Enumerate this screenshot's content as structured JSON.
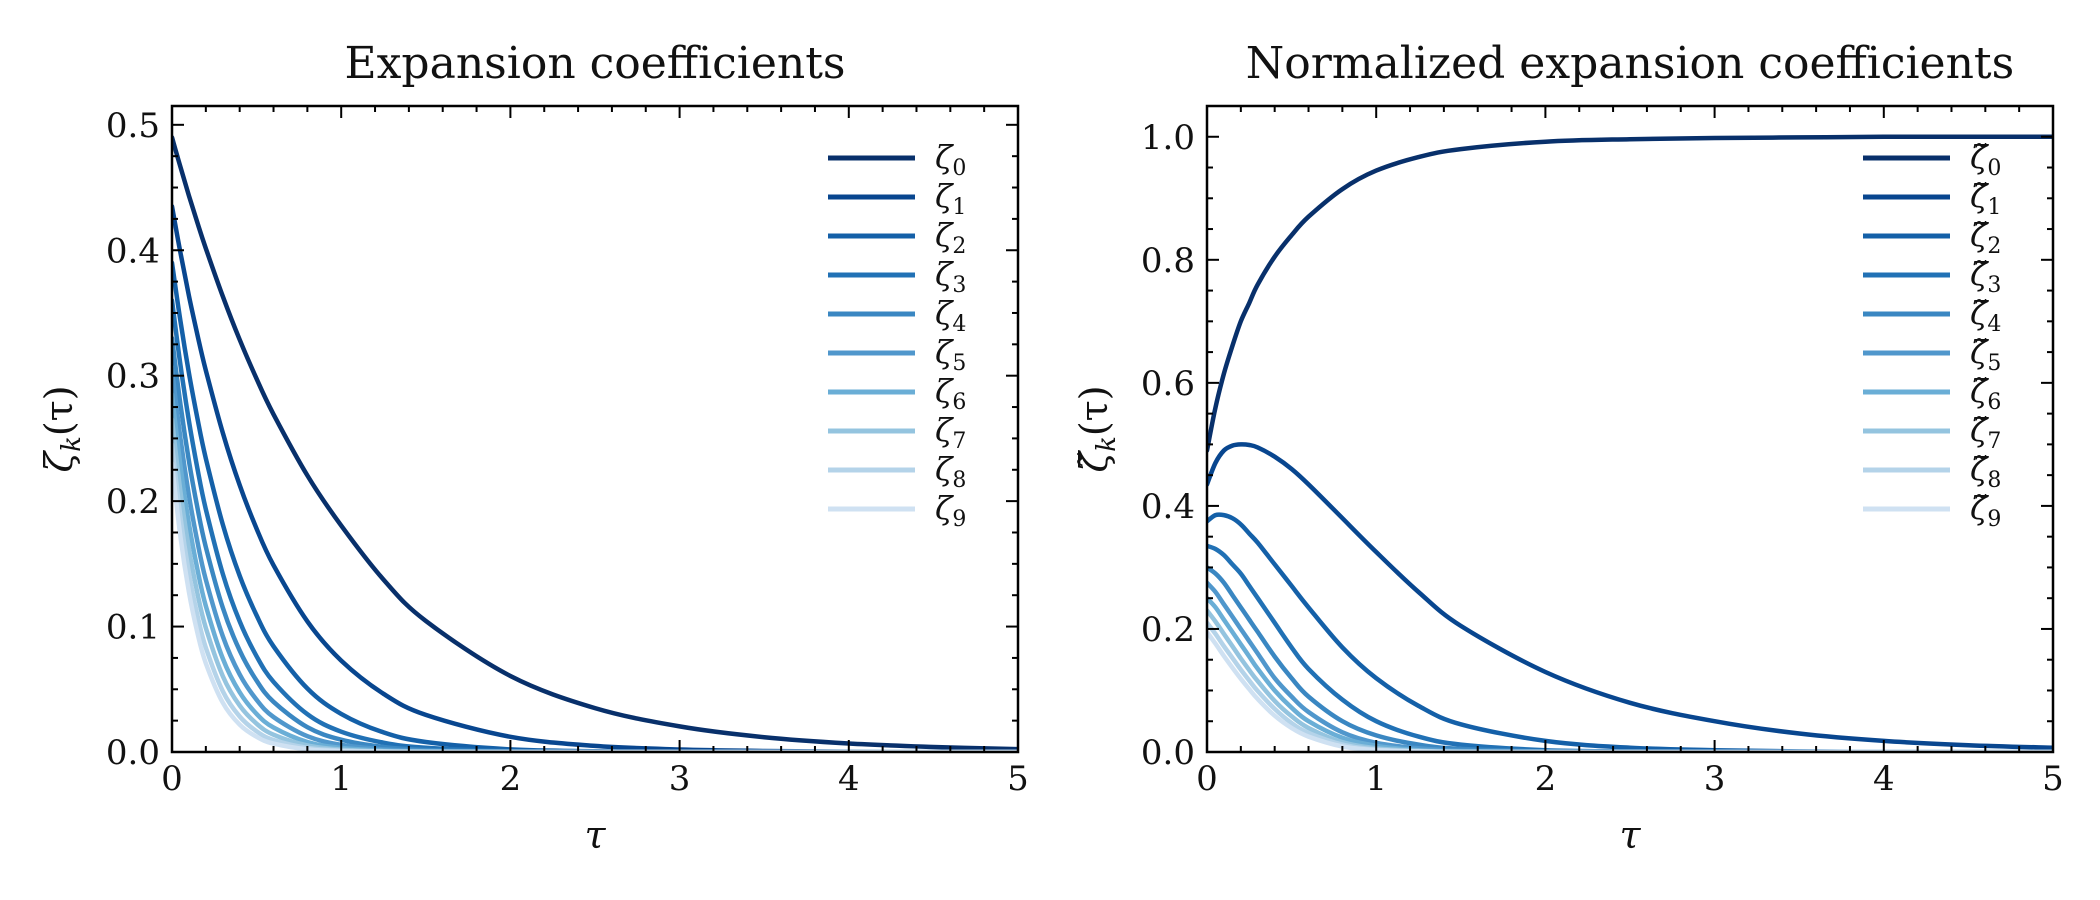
{
  "chart_data": [
    {
      "type": "line",
      "title": "Expansion coefficients",
      "xlabel": "τ",
      "ylabel": "ζ_k(τ)",
      "ylabel_base": "ζ",
      "ylabel_sub": "k",
      "ylabel_tail": "(τ)",
      "xlim": [
        0,
        5
      ],
      "ylim": [
        0,
        0.515
      ],
      "xticks": [
        0,
        1,
        2,
        3,
        4,
        5
      ],
      "xtick_labels": [
        "0",
        "1",
        "2",
        "3",
        "4",
        "5"
      ],
      "yticks": [
        0.0,
        0.1,
        0.2,
        0.3,
        0.4,
        0.5
      ],
      "ytick_labels": [
        "0.0",
        "0.1",
        "0.2",
        "0.3",
        "0.4",
        "0.5"
      ],
      "legend_position": "upper-right",
      "grid": false,
      "x": [
        0,
        0.05,
        0.1,
        0.15,
        0.2,
        0.3,
        0.4,
        0.5,
        0.6,
        0.8,
        1.0,
        1.25,
        1.5,
        2.0,
        2.5,
        3.0,
        3.5,
        4.0,
        4.5,
        5.0
      ],
      "series": [
        {
          "name": "ζ_0",
          "label_base": "ζ",
          "label_sub": "0",
          "color": "#08306b",
          "values": [
            0.49,
            0.4663,
            0.4436,
            0.422,
            0.4015,
            0.3633,
            0.3287,
            0.2975,
            0.2692,
            0.2204,
            0.1805,
            0.1374,
            0.1045,
            0.0606,
            0.035,
            0.0204,
            0.0118,
            0.0068,
            0.004,
            0.0023
          ]
        },
        {
          "name": "ζ_1",
          "label_base": "ζ",
          "label_sub": "1",
          "color": "#08468f",
          "values": [
            0.435,
            0.3978,
            0.3638,
            0.3327,
            0.3043,
            0.2545,
            0.2128,
            0.178,
            0.1489,
            0.1041,
            0.0729,
            0.0464,
            0.0296,
            0.0121,
            0.0049,
            0.002,
            0.0008,
            0.0003,
            0.0001,
            0.0
          ]
        },
        {
          "name": "ζ_2",
          "label_base": "ζ",
          "label_sub": "2",
          "color": "#1460a8",
          "values": [
            0.39,
            0.3433,
            0.3022,
            0.266,
            0.2341,
            0.1814,
            0.1405,
            0.1089,
            0.0843,
            0.0506,
            0.0304,
            0.0156,
            0.008,
            0.0021,
            0.0006,
            0.0001,
            0.0,
            0.0,
            0.0,
            0.0
          ]
        },
        {
          "name": "ζ_3",
          "label_base": "ζ",
          "label_sub": "3",
          "color": "#2171b5",
          "values": [
            0.36,
            0.3083,
            0.264,
            0.2261,
            0.1936,
            0.142,
            0.1041,
            0.0763,
            0.056,
            0.0301,
            0.0162,
            0.0074,
            0.0034,
            0.0007,
            0.0001,
            0.0,
            0.0,
            0.0,
            0.0,
            0.0
          ]
        },
        {
          "name": "ζ_4",
          "label_base": "ζ",
          "label_sub": "4",
          "color": "#3a87c2",
          "values": [
            0.33,
            0.2768,
            0.2322,
            0.1948,
            0.1634,
            0.115,
            0.0809,
            0.0569,
            0.04,
            0.0198,
            0.0098,
            0.004,
            0.0016,
            0.0003,
            0.0,
            0.0,
            0.0,
            0.0,
            0.0,
            0.0
          ]
        },
        {
          "name": "ζ_5",
          "label_base": "ζ",
          "label_sub": "5",
          "color": "#5097cc",
          "values": [
            0.305,
            0.2499,
            0.2047,
            0.1677,
            0.1374,
            0.0923,
            0.0619,
            0.0416,
            0.0279,
            0.0126,
            0.0057,
            0.0021,
            0.0008,
            0.0001,
            0.0,
            0.0,
            0.0,
            0.0,
            0.0,
            0.0
          ]
        },
        {
          "name": "ζ_6",
          "label_base": "ζ",
          "label_sub": "6",
          "color": "#6aaed6",
          "values": [
            0.285,
            0.2279,
            0.1822,
            0.1457,
            0.1165,
            0.0745,
            0.0476,
            0.0304,
            0.0195,
            0.008,
            0.0033,
            0.0011,
            0.0003,
            0.0,
            0.0,
            0.0,
            0.0,
            0.0,
            0.0,
            0.0
          ]
        },
        {
          "name": "ζ_7",
          "label_base": "ζ",
          "label_sub": "7",
          "color": "#94c4df",
          "values": [
            0.265,
            0.2072,
            0.162,
            0.1266,
            0.099,
            0.0605,
            0.037,
            0.0226,
            0.0138,
            0.0052,
            0.0019,
            0.0006,
            0.0002,
            0.0,
            0.0,
            0.0,
            0.0,
            0.0,
            0.0,
            0.0
          ]
        },
        {
          "name": "ζ_8",
          "label_base": "ζ",
          "label_sub": "8",
          "color": "#b4d3e9",
          "values": [
            0.245,
            0.1871,
            0.1428,
            0.109,
            0.0832,
            0.0485,
            0.0283,
            0.0165,
            0.0096,
            0.0033,
            0.0011,
            0.0003,
            0.0001,
            0.0,
            0.0,
            0.0,
            0.0,
            0.0,
            0.0,
            0.0
          ]
        },
        {
          "name": "ζ_9",
          "label_base": "ζ",
          "label_sub": "9",
          "color": "#cfe1f2",
          "values": [
            0.23,
            0.1713,
            0.1276,
            0.0951,
            0.0708,
            0.0393,
            0.0218,
            0.0121,
            0.0067,
            0.0021,
            0.0006,
            0.0002,
            0.0,
            0.0,
            0.0,
            0.0,
            0.0,
            0.0,
            0.0,
            0.0
          ]
        }
      ]
    },
    {
      "type": "line",
      "title": "Normalized expansion coefficients",
      "xlabel": "τ",
      "ylabel": "ζ̃_k(τ)",
      "ylabel_base": "ζ̃",
      "ylabel_sub": "k",
      "ylabel_tail": "(τ)",
      "xlim": [
        0,
        5
      ],
      "ylim": [
        0,
        1.05
      ],
      "xticks": [
        0,
        1,
        2,
        3,
        4,
        5
      ],
      "xtick_labels": [
        "0",
        "1",
        "2",
        "3",
        "4",
        "5"
      ],
      "yticks": [
        0.0,
        0.2,
        0.4,
        0.6,
        0.8,
        1.0
      ],
      "ytick_labels": [
        "0.0",
        "0.2",
        "0.4",
        "0.6",
        "0.8",
        "1.0"
      ],
      "legend_position": "upper-right",
      "grid": false,
      "x": [
        0,
        0.05,
        0.1,
        0.15,
        0.2,
        0.25,
        0.3,
        0.4,
        0.5,
        0.6,
        0.8,
        1.0,
        1.25,
        1.5,
        2.0,
        2.5,
        3.0,
        3.5,
        4.0,
        4.5,
        5.0
      ],
      "series": [
        {
          "name": "ζ̃_0",
          "label_base": "ζ̃",
          "label_sub": "0",
          "color": "#08306b",
          "values": [
            0.49,
            0.56,
            0.615,
            0.66,
            0.7,
            0.73,
            0.76,
            0.805,
            0.84,
            0.87,
            0.915,
            0.945,
            0.967,
            0.98,
            0.992,
            0.996,
            0.998,
            0.999,
            1.0,
            1.0,
            1.0
          ]
        },
        {
          "name": "ζ̃_1",
          "label_base": "ζ̃",
          "label_sub": "1",
          "color": "#08468f",
          "values": [
            0.435,
            0.47,
            0.49,
            0.498,
            0.5,
            0.499,
            0.495,
            0.48,
            0.46,
            0.435,
            0.38,
            0.325,
            0.26,
            0.205,
            0.13,
            0.08,
            0.05,
            0.03,
            0.018,
            0.011,
            0.007
          ]
        },
        {
          "name": "ζ̃_2",
          "label_base": "ζ̃",
          "label_sub": "2",
          "color": "#1460a8",
          "values": [
            0.375,
            0.385,
            0.385,
            0.38,
            0.37,
            0.355,
            0.34,
            0.305,
            0.27,
            0.235,
            0.17,
            0.12,
            0.075,
            0.045,
            0.018,
            0.007,
            0.003,
            0.001,
            0.0,
            0.0,
            0.0
          ]
        },
        {
          "name": "ζ̃_3",
          "label_base": "ζ̃",
          "label_sub": "3",
          "color": "#2171b5",
          "values": [
            0.335,
            0.33,
            0.32,
            0.305,
            0.29,
            0.27,
            0.25,
            0.21,
            0.17,
            0.135,
            0.085,
            0.05,
            0.025,
            0.012,
            0.003,
            0.001,
            0.0,
            0.0,
            0.0,
            0.0,
            0.0
          ]
        },
        {
          "name": "ζ̃_4",
          "label_base": "ζ̃",
          "label_sub": "4",
          "color": "#3a87c2",
          "values": [
            0.3,
            0.29,
            0.275,
            0.255,
            0.235,
            0.215,
            0.195,
            0.155,
            0.12,
            0.09,
            0.05,
            0.027,
            0.012,
            0.005,
            0.001,
            0.0,
            0.0,
            0.0,
            0.0,
            0.0,
            0.0
          ]
        },
        {
          "name": "ζ̃_5",
          "label_base": "ζ̃",
          "label_sub": "5",
          "color": "#5097cc",
          "values": [
            0.275,
            0.26,
            0.24,
            0.22,
            0.2,
            0.18,
            0.16,
            0.12,
            0.09,
            0.065,
            0.032,
            0.015,
            0.006,
            0.002,
            0.0,
            0.0,
            0.0,
            0.0,
            0.0,
            0.0,
            0.0
          ]
        },
        {
          "name": "ζ̃_6",
          "label_base": "ζ̃",
          "label_sub": "6",
          "color": "#6aaed6",
          "values": [
            0.25,
            0.235,
            0.215,
            0.195,
            0.175,
            0.155,
            0.135,
            0.1,
            0.072,
            0.05,
            0.023,
            0.01,
            0.003,
            0.001,
            0.0,
            0.0,
            0.0,
            0.0,
            0.0,
            0.0,
            0.0
          ]
        },
        {
          "name": "ζ̃_7",
          "label_base": "ζ̃",
          "label_sub": "7",
          "color": "#94c4df",
          "values": [
            0.23,
            0.212,
            0.192,
            0.172,
            0.152,
            0.133,
            0.115,
            0.083,
            0.058,
            0.039,
            0.016,
            0.006,
            0.002,
            0.0,
            0.0,
            0.0,
            0.0,
            0.0,
            0.0,
            0.0,
            0.0
          ]
        },
        {
          "name": "ζ̃_8",
          "label_base": "ζ̃",
          "label_sub": "8",
          "color": "#b4d3e9",
          "values": [
            0.21,
            0.192,
            0.172,
            0.153,
            0.134,
            0.116,
            0.099,
            0.07,
            0.047,
            0.031,
            0.012,
            0.004,
            0.001,
            0.0,
            0.0,
            0.0,
            0.0,
            0.0,
            0.0,
            0.0,
            0.0
          ]
        },
        {
          "name": "ζ̃_9",
          "label_base": "ζ̃",
          "label_sub": "9",
          "color": "#cfe1f2",
          "values": [
            0.195,
            0.176,
            0.156,
            0.137,
            0.119,
            0.102,
            0.086,
            0.059,
            0.039,
            0.025,
            0.009,
            0.003,
            0.001,
            0.0,
            0.0,
            0.0,
            0.0,
            0.0,
            0.0,
            0.0,
            0.0
          ]
        }
      ]
    }
  ]
}
